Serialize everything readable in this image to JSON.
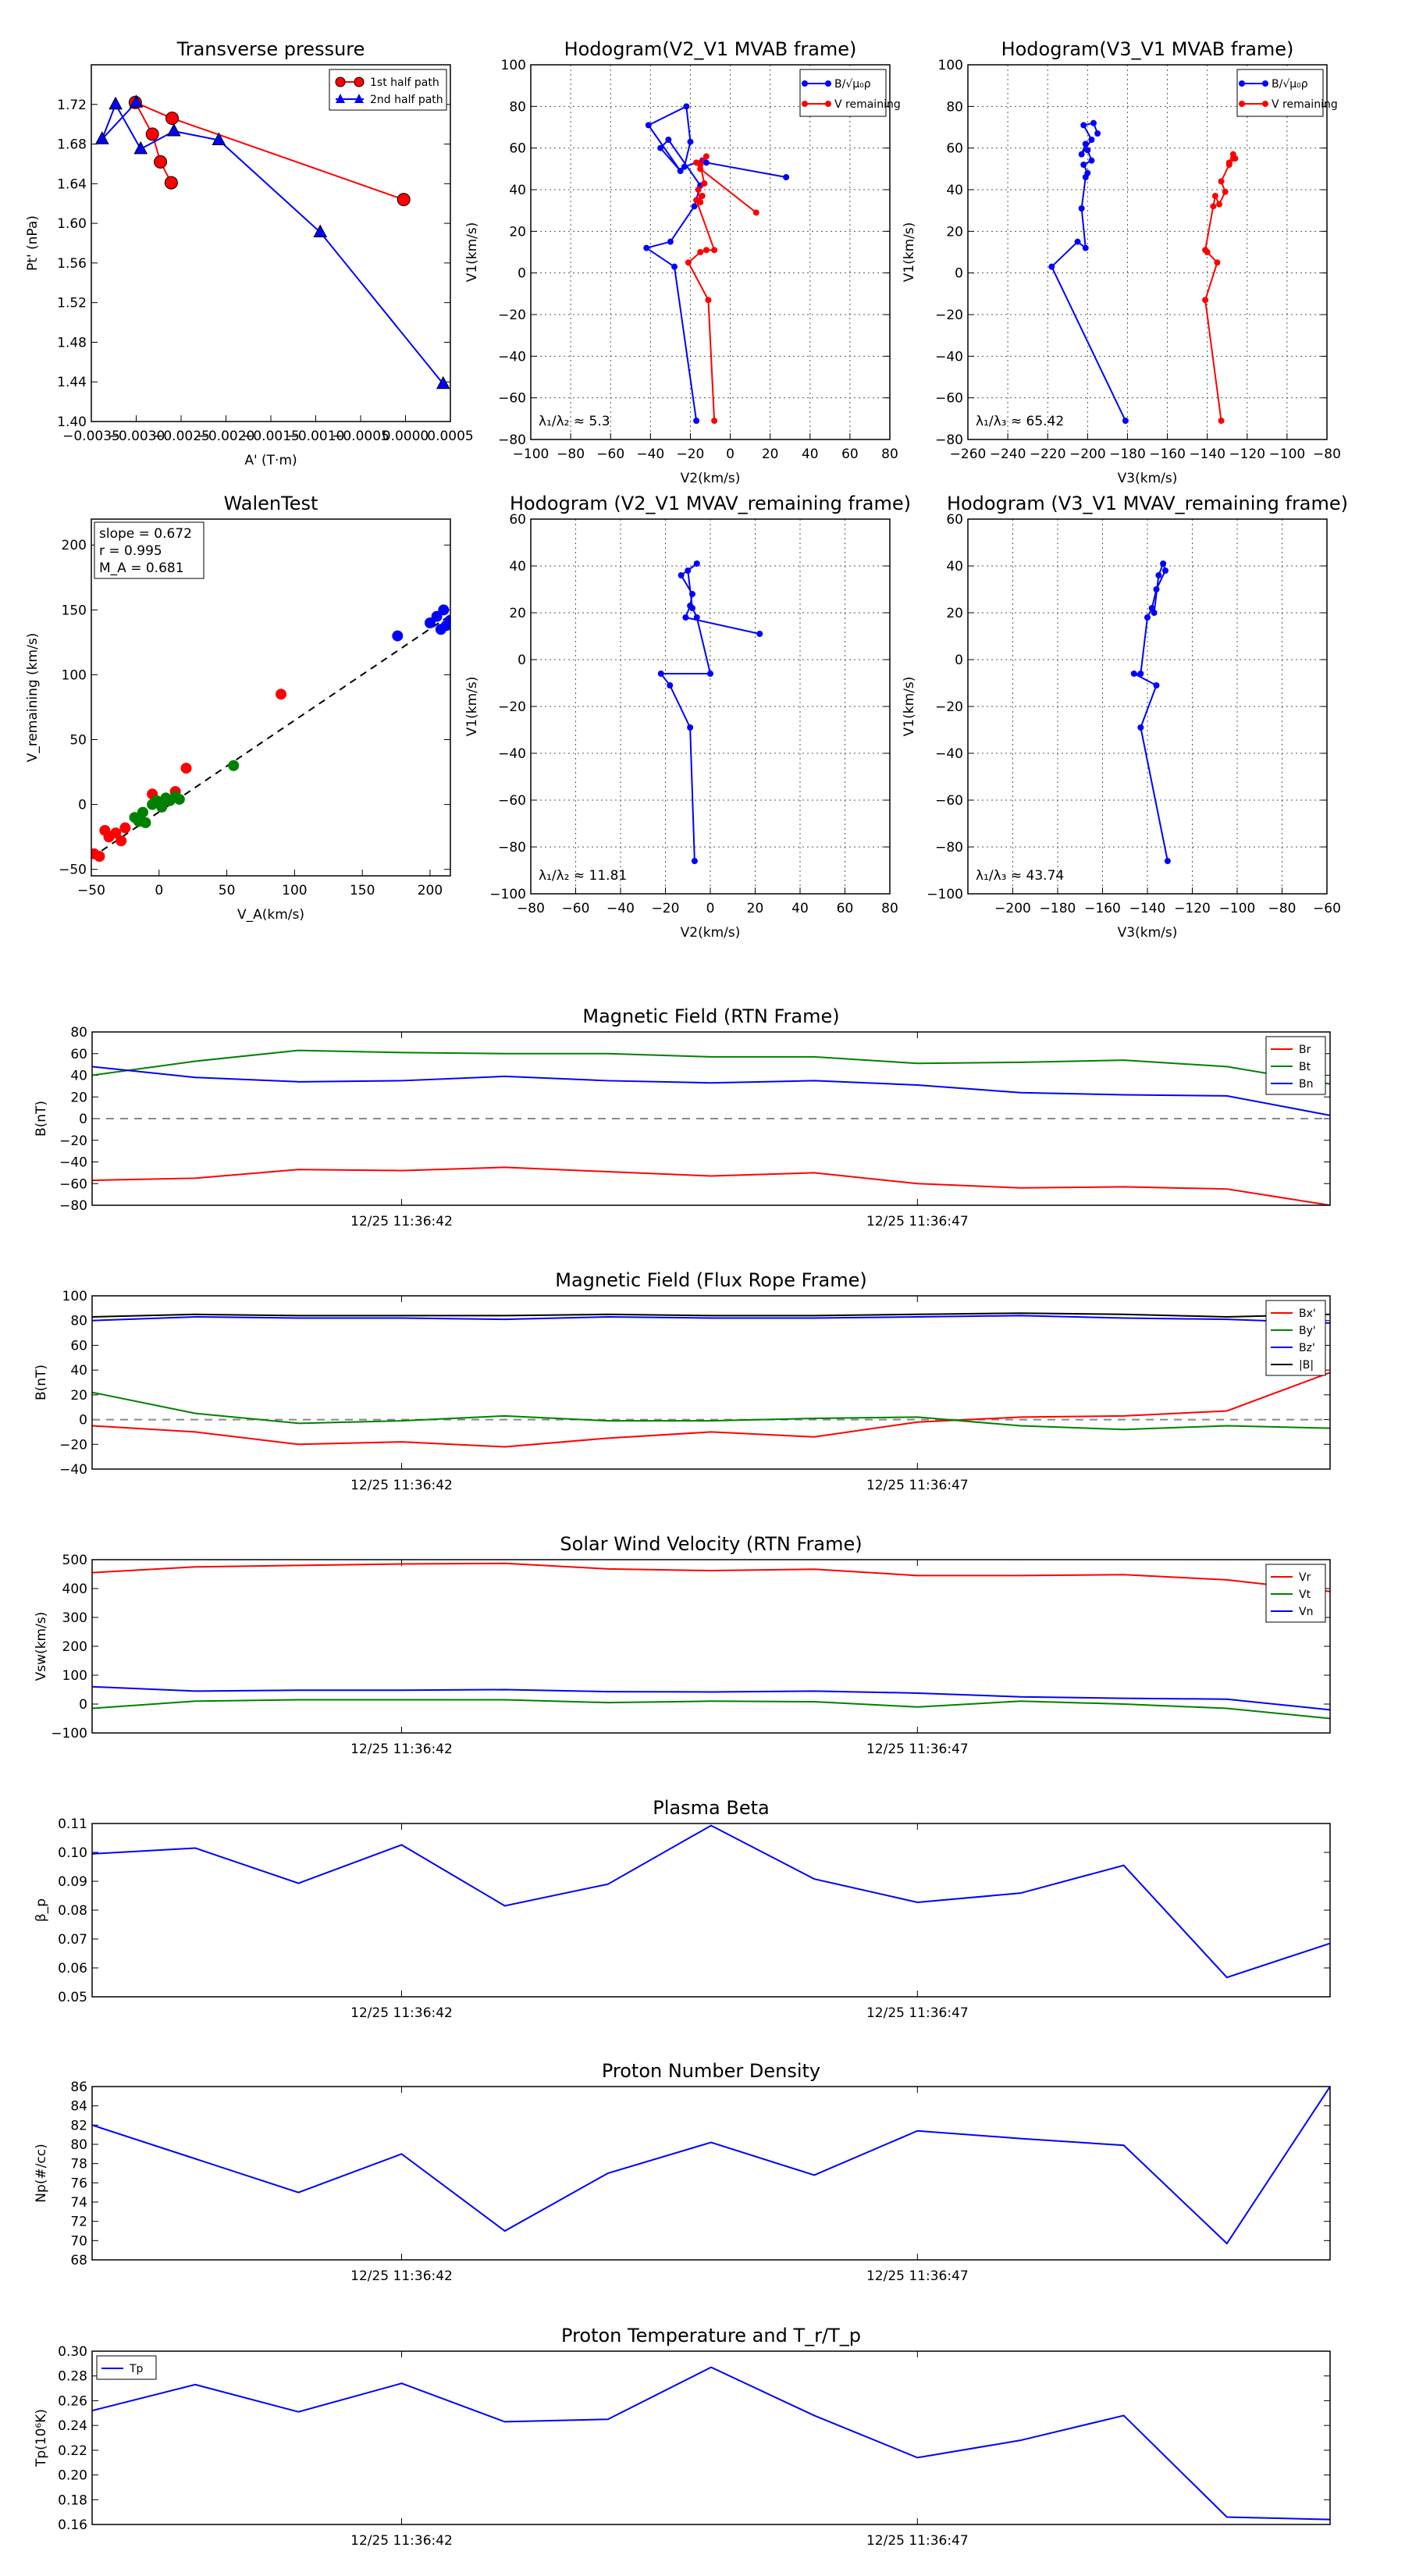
{
  "colors": {
    "red": "#ff0000",
    "blue": "#0000ff",
    "green": "#008000",
    "black": "#000000"
  },
  "chart_data": [
    {
      "id": "tp",
      "type": "scatter",
      "title": "Transverse pressure",
      "xlabel": "A' (T·m)",
      "ylabel": "Pt' (nPa)",
      "xlim": [
        -0.0035,
        0.0005
      ],
      "ylim": [
        1.4,
        1.76
      ],
      "xticks": [
        "−0.0035",
        "−0.0030",
        "−0.0025",
        "−0.0020",
        "−0.0015",
        "−0.0010",
        "−0.0005",
        "0.0000",
        "0.0005"
      ],
      "yticks": [
        "1.40",
        "1.44",
        "1.48",
        "1.52",
        "1.56",
        "1.60",
        "1.64",
        "1.68",
        "1.72"
      ],
      "legend": [
        "1st half path",
        "2nd half path"
      ],
      "series": [
        {
          "name": "1st half path",
          "color": "red",
          "marker": "circle",
          "x": [
            -2e-05,
            -0.0026,
            -0.00301,
            -0.00282,
            -0.00273,
            -0.00261
          ],
          "y": [
            1.624,
            1.706,
            1.722,
            1.69,
            1.662,
            1.641
          ]
        },
        {
          "name": "2nd half path",
          "color": "blue",
          "marker": "triangle",
          "x": [
            -0.003,
            -0.00338,
            -0.00323,
            -0.00295,
            -0.00258,
            -0.00208,
            -0.00095,
            0.00042
          ],
          "y": [
            1.722,
            1.685,
            1.72,
            1.675,
            1.693,
            1.684,
            1.591,
            1.438
          ]
        }
      ]
    },
    {
      "id": "h1",
      "type": "line",
      "title": "Hodogram(V2_V1 MVAB frame)",
      "xlabel": "V2(km/s)",
      "ylabel": "V1(km/s)",
      "xlim": [
        -100,
        80
      ],
      "ylim": [
        -80,
        100
      ],
      "xticks": [
        "−100",
        "−80",
        "−60",
        "−40",
        "−20",
        "0",
        "20",
        "40",
        "60",
        "80"
      ],
      "yticks": [
        "−80",
        "−60",
        "−40",
        "−20",
        "0",
        "20",
        "40",
        "60",
        "80",
        "100"
      ],
      "legend": [
        "B/√μ₀ρ",
        "V remaining"
      ],
      "annotation": "λ₁/λ₂ ≈ 5.3",
      "series": [
        {
          "name": "B",
          "color": "blue",
          "x": [
            -17,
            -28,
            -42,
            -30,
            -18,
            -15,
            -31,
            -35,
            -25,
            -41,
            -22,
            -20,
            -23,
            -14,
            -12,
            28
          ],
          "y": [
            -71,
            3,
            12,
            15,
            32,
            42,
            64,
            60,
            49,
            71,
            80,
            63,
            51,
            54,
            53,
            46
          ]
        },
        {
          "name": "V",
          "color": "red",
          "x": [
            -8,
            -11,
            -21,
            -15,
            -12,
            -8,
            -17,
            -14,
            -15,
            -16,
            -13,
            -15,
            -12,
            -17,
            -15,
            13
          ],
          "y": [
            -71,
            -13,
            5,
            10,
            11,
            11,
            35,
            37,
            34,
            40,
            43,
            52,
            56,
            53,
            50,
            29
          ]
        }
      ]
    },
    {
      "id": "h2",
      "type": "line",
      "title": "Hodogram(V3_V1 MVAB frame)",
      "xlabel": "V3(km/s)",
      "ylabel": "V1(km/s)",
      "xlim": [
        -260,
        -80
      ],
      "ylim": [
        -80,
        100
      ],
      "xticks": [
        "−260",
        "−240",
        "−220",
        "−200",
        "−180",
        "−160",
        "−140",
        "−120",
        "−100",
        "−80"
      ],
      "yticks": [
        "−80",
        "−60",
        "−40",
        "−20",
        "0",
        "20",
        "40",
        "60",
        "80",
        "100"
      ],
      "legend": [
        "B/√μ₀ρ",
        "V remaining"
      ],
      "annotation": "λ₁/λ₃ ≈ 65.42",
      "series": [
        {
          "name": "B",
          "color": "blue",
          "x": [
            -181,
            -218,
            -205,
            -201,
            -203,
            -201,
            -200,
            -202,
            -198,
            -200,
            -201,
            -203,
            -198,
            -202,
            -197,
            -195
          ],
          "y": [
            -71,
            3,
            15,
            12,
            31,
            46,
            48,
            52,
            54,
            59,
            62,
            57,
            64,
            71,
            72,
            67
          ],
          "dots": true
        },
        {
          "name": "V",
          "color": "red",
          "x": [
            -133,
            -141,
            -135,
            -140,
            -141,
            -137,
            -136,
            -134,
            -131,
            -133,
            -129,
            -127,
            -129,
            -127,
            -126
          ],
          "y": [
            -71,
            -13,
            5,
            10,
            11,
            32,
            37,
            33,
            39,
            44,
            52,
            55,
            53,
            57,
            55
          ],
          "dots": true
        }
      ]
    },
    {
      "id": "walen",
      "type": "scatter",
      "title": "WalenTest",
      "xlabel": "V_A(km/s)",
      "ylabel": "V_remaining (km/s)",
      "xlim": [
        -50,
        215
      ],
      "ylim": [
        -55,
        220
      ],
      "xticks": [
        "−50",
        "0",
        "50",
        "100",
        "150",
        "200"
      ],
      "yticks": [
        "−50",
        "0",
        "50",
        "100",
        "150",
        "200"
      ],
      "boxText": [
        "slope = 0.672",
        "r = 0.995",
        "M_A = 0.681"
      ],
      "fit": {
        "x": [
          -50,
          215
        ],
        "y": [
          -41,
          146
        ]
      },
      "series": [
        {
          "name": "red",
          "color": "red",
          "x": [
            -48,
            -44,
            -40,
            -37,
            -32,
            -28,
            -25,
            -5,
            5,
            12,
            20,
            90
          ],
          "y": [
            -38,
            -40,
            -20,
            -25,
            -22,
            -28,
            -18,
            8,
            4,
            10,
            28,
            85
          ]
        },
        {
          "name": "green",
          "color": "green",
          "x": [
            -18,
            -15,
            -12,
            -10,
            -5,
            -2,
            2,
            5,
            8,
            12,
            15,
            55
          ],
          "y": [
            -10,
            -13,
            -6,
            -14,
            0,
            3,
            -2,
            5,
            3,
            6,
            4,
            30
          ]
        },
        {
          "name": "blue",
          "color": "blue",
          "x": [
            176,
            200,
            205,
            208,
            210,
            212,
            215
          ],
          "y": [
            130,
            140,
            145,
            135,
            150,
            138,
            142
          ]
        }
      ]
    },
    {
      "id": "h3",
      "type": "line",
      "title": "Hodogram (V2_V1 MVAV_remaining frame)",
      "xlabel": "V2(km/s)",
      "ylabel": "V1(km/s)",
      "xlim": [
        -80,
        80
      ],
      "ylim": [
        -100,
        60
      ],
      "xticks": [
        "−80",
        "−60",
        "−40",
        "−20",
        "0",
        "20",
        "40",
        "60",
        "80"
      ],
      "yticks": [
        "−100",
        "−80",
        "−60",
        "−40",
        "−20",
        "0",
        "20",
        "40",
        "60"
      ],
      "annotation": "λ₁/λ₂ ≈ 11.81",
      "series": [
        {
          "name": "V",
          "color": "blue",
          "x": [
            -7,
            -9,
            -18,
            -22,
            0,
            -6,
            -8,
            -10,
            -6,
            -13,
            -8,
            -9,
            -11,
            22
          ],
          "y": [
            -86,
            -29,
            -11,
            -6,
            -6,
            18,
            22,
            38,
            41,
            36,
            28,
            23,
            18,
            11
          ],
          "dots": true
        }
      ]
    },
    {
      "id": "h4",
      "type": "line",
      "title": "Hodogram (V3_V1 MVAV_remaining frame)",
      "xlabel": "V3(km/s)",
      "ylabel": "V1(km/s)",
      "xlim": [
        -220,
        -60
      ],
      "ylim": [
        -100,
        60
      ],
      "xticks": [
        "−200",
        "−180",
        "−160",
        "−140",
        "−120",
        "−100",
        "−80",
        "−60"
      ],
      "yticks": [
        "−100",
        "−80",
        "−60",
        "−40",
        "−20",
        "0",
        "20",
        "40",
        "60"
      ],
      "annotation": "λ₁/λ₃ ≈ 43.74",
      "series": [
        {
          "name": "V",
          "color": "blue",
          "x": [
            -131,
            -143,
            -136,
            -146,
            -143,
            -140,
            -138,
            -136,
            -132,
            -133,
            -135,
            -137
          ],
          "y": [
            -86,
            -29,
            -11,
            -6,
            -6,
            18,
            22,
            30,
            38,
            41,
            36,
            20
          ],
          "dots": true
        }
      ]
    },
    {
      "id": "ts1",
      "type": "line",
      "title": "Magnetic Field (RTN Frame)",
      "ylabel": "B(nT)",
      "ylim": [
        -80,
        80
      ],
      "yticks": [
        "−80",
        "−60",
        "−40",
        "−20",
        "0",
        "20",
        "40",
        "60",
        "80"
      ],
      "zero": true,
      "legendPos": "top-right",
      "xtick_labels": [
        "12/25 11:36:42",
        "12/25 11:36:47"
      ],
      "series": [
        {
          "name": "Br",
          "color": "red",
          "values": [
            -57,
            -55,
            -47,
            -48,
            -45,
            -49,
            -53,
            -50,
            -60,
            -64,
            -63,
            -65,
            -80
          ]
        },
        {
          "name": "Bt",
          "color": "green",
          "values": [
            40,
            53,
            63,
            61,
            60,
            60,
            57,
            57,
            51,
            52,
            54,
            48,
            32
          ]
        },
        {
          "name": "Bn",
          "color": "blue",
          "values": [
            48,
            38,
            34,
            35,
            39,
            35,
            33,
            35,
            31,
            24,
            22,
            21,
            3
          ]
        }
      ]
    },
    {
      "id": "ts2",
      "type": "line",
      "title": "Magnetic Field (Flux Rope Frame)",
      "ylabel": "B(nT)",
      "ylim": [
        -40,
        100
      ],
      "yticks": [
        "−40",
        "−20",
        "0",
        "20",
        "40",
        "60",
        "80",
        "100"
      ],
      "zero": true,
      "legendPos": "top-right",
      "xtick_labels": [
        "12/25 11:36:42",
        "12/25 11:36:47"
      ],
      "series": [
        {
          "name": "Bx'",
          "color": "red",
          "values": [
            -5,
            -10,
            -20,
            -18,
            -22,
            -15,
            -10,
            -14,
            -2,
            2,
            3,
            7,
            38
          ]
        },
        {
          "name": "By'",
          "color": "green",
          "values": [
            22,
            5,
            -3,
            -1,
            3,
            -1,
            -1,
            1,
            2,
            -5,
            -8,
            -5,
            -7
          ]
        },
        {
          "name": "Bz'",
          "color": "blue",
          "values": [
            80,
            83,
            82,
            82,
            81,
            83,
            82,
            82,
            83,
            84,
            82,
            81,
            78
          ]
        },
        {
          "name": "|B|",
          "color": "black",
          "values": [
            83,
            85,
            84,
            84,
            84,
            85,
            84,
            84,
            85,
            86,
            85,
            83,
            85
          ]
        }
      ]
    },
    {
      "id": "ts3",
      "type": "line",
      "title": "Solar Wind Velocity (RTN Frame)",
      "ylabel": "Vsw(km/s)",
      "ylim": [
        -100,
        500
      ],
      "yticks": [
        "−100",
        "0",
        "100",
        "200",
        "300",
        "400",
        "500"
      ],
      "legendPos": "top-right",
      "xtick_labels": [
        "12/25 11:36:42",
        "12/25 11:36:47"
      ],
      "series": [
        {
          "name": "Vr",
          "color": "red",
          "values": [
            455,
            475,
            480,
            485,
            487,
            468,
            462,
            467,
            445,
            445,
            448,
            430,
            390
          ]
        },
        {
          "name": "Vt",
          "color": "green",
          "values": [
            -15,
            10,
            15,
            15,
            15,
            5,
            10,
            8,
            -10,
            10,
            0,
            -15,
            -50
          ]
        },
        {
          "name": "Vn",
          "color": "blue",
          "values": [
            60,
            45,
            48,
            48,
            50,
            43,
            42,
            45,
            38,
            25,
            20,
            17,
            -20
          ]
        }
      ]
    },
    {
      "id": "ts4",
      "type": "line",
      "title": "Plasma Beta",
      "ylabel": "β_p",
      "ylim": [
        0.05,
        0.11
      ],
      "yticks": [
        "0.05",
        "0.06",
        "0.07",
        "0.08",
        "0.09",
        "0.10",
        "0.11"
      ],
      "xtick_labels": [
        "12/25 11:36:42",
        "12/25 11:36:47"
      ],
      "series": [
        {
          "name": "beta",
          "color": "blue",
          "values": [
            0.0995,
            0.1015,
            0.0893,
            0.1026,
            0.0815,
            0.089,
            0.1093,
            0.0908,
            0.0827,
            0.0859,
            0.0955,
            0.0567,
            0.0685
          ]
        }
      ]
    },
    {
      "id": "ts5",
      "type": "line",
      "title": "Proton Number Density",
      "ylabel": "Np(#/cc)",
      "ylim": [
        68,
        86
      ],
      "yticks": [
        "68",
        "70",
        "72",
        "74",
        "76",
        "78",
        "80",
        "82",
        "84",
        "86"
      ],
      "xtick_labels": [
        "12/25 11:36:42",
        "12/25 11:36:47"
      ],
      "series": [
        {
          "name": "Np",
          "color": "blue",
          "values": [
            82,
            78.5,
            75,
            79,
            71,
            77,
            80.2,
            76.8,
            81.4,
            80.6,
            79.9,
            69.7,
            86
          ]
        }
      ]
    },
    {
      "id": "ts6",
      "type": "line",
      "title": "Proton Temperature and T_r/T_p",
      "ylabel": "Tp(10⁶K)",
      "ylim": [
        0.16,
        0.3
      ],
      "yticks": [
        "0.16",
        "0.18",
        "0.20",
        "0.22",
        "0.24",
        "0.26",
        "0.28",
        "0.30"
      ],
      "legendPos": "top-left",
      "xtick_labels": [
        "12/25 11:36:42",
        "12/25 11:36:47"
      ],
      "series": [
        {
          "name": "Tp",
          "color": "blue",
          "values": [
            0.252,
            0.273,
            0.251,
            0.274,
            0.243,
            0.245,
            0.287,
            0.248,
            0.214,
            0.228,
            0.248,
            0.166,
            0.164
          ]
        }
      ]
    }
  ]
}
